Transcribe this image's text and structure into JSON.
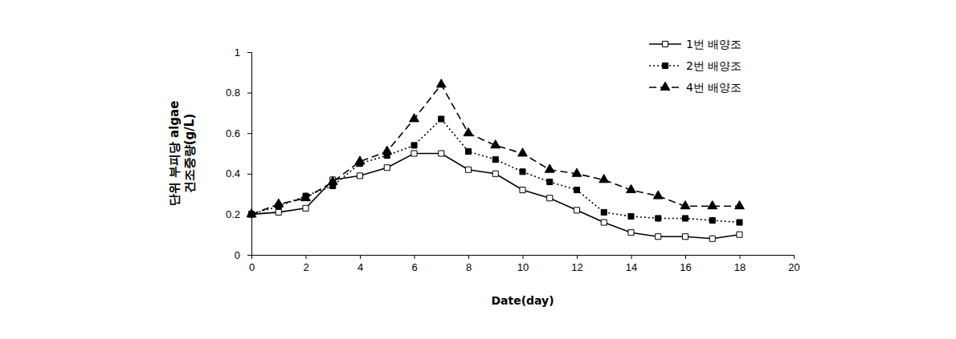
{
  "chart_data": {
    "type": "line",
    "xlabel": "Date(day)",
    "ylabel": [
      "단위 부피당 algae",
      "건조중량(g/L)"
    ],
    "x": [
      0,
      1,
      2,
      3,
      4,
      5,
      6,
      7,
      8,
      9,
      10,
      11,
      12,
      13,
      14,
      15,
      16,
      17,
      18
    ],
    "series": [
      {
        "name": "1번 배양조",
        "color": "#000000",
        "marker": "square-open",
        "line_style": "solid",
        "values": [
          0.2,
          0.21,
          0.23,
          0.37,
          0.39,
          0.43,
          0.5,
          0.5,
          0.42,
          0.4,
          0.32,
          0.28,
          0.22,
          0.16,
          0.11,
          0.09,
          0.09,
          0.08,
          0.1
        ]
      },
      {
        "name": "2번 배양조",
        "color": "#000000",
        "marker": "square",
        "line_style": "dotted",
        "values": [
          0.2,
          0.24,
          0.29,
          0.34,
          0.45,
          0.49,
          0.54,
          0.67,
          0.51,
          0.47,
          0.41,
          0.36,
          0.32,
          0.21,
          0.19,
          0.18,
          0.18,
          0.17,
          0.16
        ]
      },
      {
        "name": "4번 배양조",
        "color": "#000000",
        "marker": "triangle",
        "line_style": "dashed",
        "values": [
          0.2,
          0.25,
          0.28,
          0.36,
          0.46,
          0.51,
          0.67,
          0.84,
          0.6,
          0.54,
          0.5,
          0.42,
          0.4,
          0.37,
          0.32,
          0.29,
          0.24,
          0.24,
          0.24
        ]
      }
    ],
    "xlim": [
      0,
      20
    ],
    "xticks": [
      0,
      2,
      4,
      6,
      8,
      10,
      12,
      14,
      16,
      18,
      20
    ],
    "ylim": [
      0,
      1
    ],
    "yticks": [
      0,
      0.2,
      0.4,
      0.6,
      0.8,
      1
    ],
    "grid": false,
    "legend": "upper right"
  }
}
